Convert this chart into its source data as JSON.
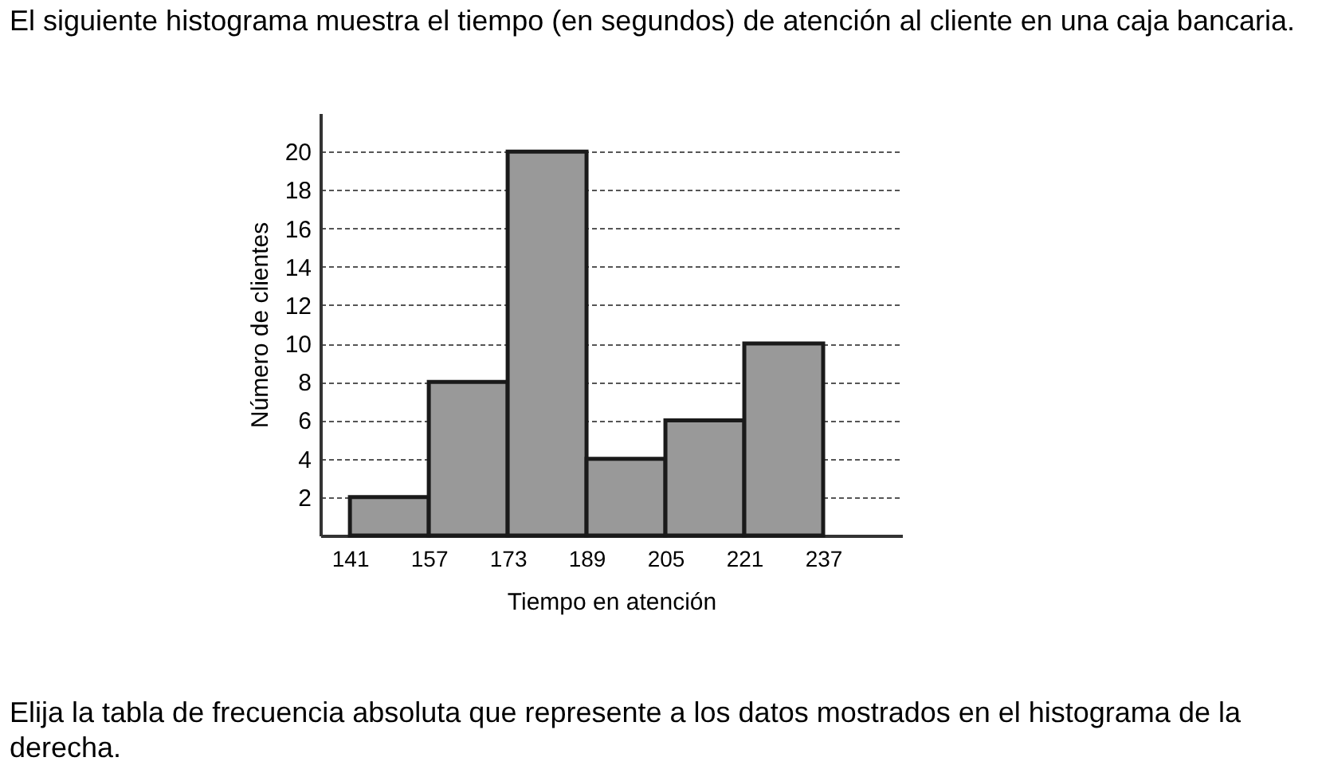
{
  "chart_data": {
    "type": "histogram",
    "title": "El siguiente histograma muestra el tiempo (en segundos) de atención al cliente en una caja bancaria.",
    "xlabel": "Tiempo en atención",
    "ylabel": "Número de clientes",
    "bins": [
      141,
      157,
      173,
      189,
      205,
      221,
      237
    ],
    "values": [
      2,
      8,
      20,
      4,
      6,
      10
    ],
    "color": "#999999",
    "xlim": [
      135,
      253
    ],
    "xticks": [
      141,
      157,
      173,
      189,
      205,
      221,
      237
    ],
    "ylim": [
      0,
      22
    ],
    "yticks": [
      2,
      4,
      6,
      8,
      10,
      12,
      14,
      16,
      18,
      20
    ],
    "grid": "y",
    "line_style": "dashed",
    "annotations": [
      "Elija la tabla de frecuencia absoluta que represente a los datos mostrados en el histograma de la derecha."
    ]
  }
}
